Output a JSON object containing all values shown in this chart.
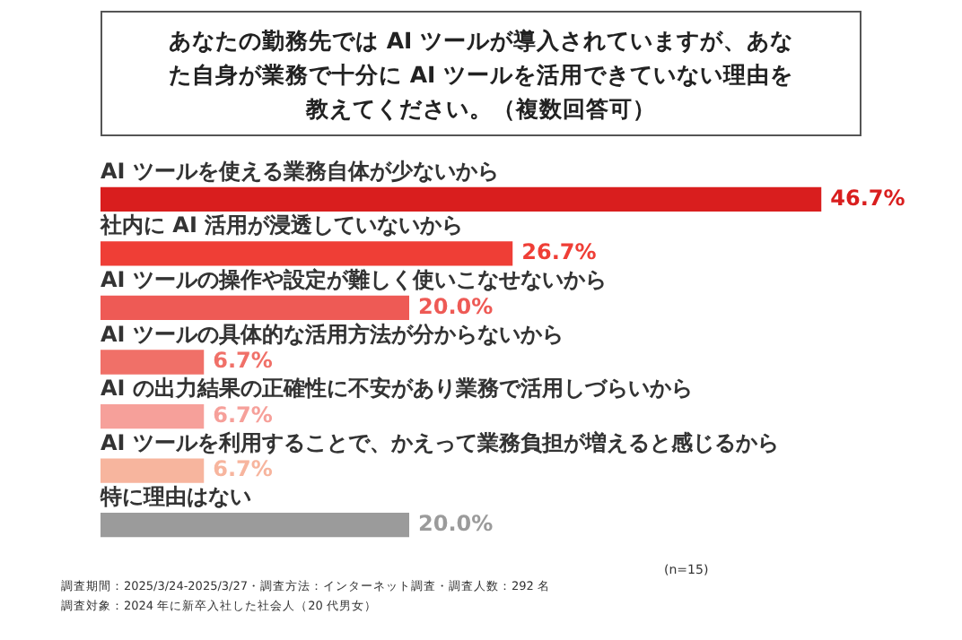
{
  "chart_data": {
    "type": "bar",
    "orientation": "horizontal",
    "title": "あなたの勤務先では AI ツールが導入されていますが、あなた自身が業務で十分に AI ツールを活用できていない理由を教えてください。（複数回答可）",
    "categories": [
      "AI ツールを使える業務自体が少ないから",
      "社内に AI 活用が浸透していないから",
      "AI ツールの操作や設定が難しく使いこなせないから",
      "AI ツールの具体的な活用方法が分からないから",
      "AI の出力結果の正確性に不安があり業務で活用しづらいから",
      "AI ツールを利用することで、かえって業務負担が増えると感じるから",
      "特に理由はない"
    ],
    "values": [
      46.7,
      26.7,
      20.0,
      6.7,
      6.7,
      6.7,
      20.0
    ],
    "value_labels": [
      "46.7%",
      "26.7%",
      "20.0%",
      "6.7%",
      "6.7%",
      "6.7%",
      "20.0%"
    ],
    "colors": [
      "#d91e1e",
      "#ef3e36",
      "#ee5a55",
      "#f07068",
      "#f6a09a",
      "#f7b59e",
      "#9b9b9b"
    ],
    "annotations": [
      "(n=15)",
      "調査期間：2025/3/24-2025/3/27・調査方法：インターネット調査・調査人数：292 名",
      "調査対象：2024 年に新卒入社した社会人（20 代男女）"
    ]
  }
}
